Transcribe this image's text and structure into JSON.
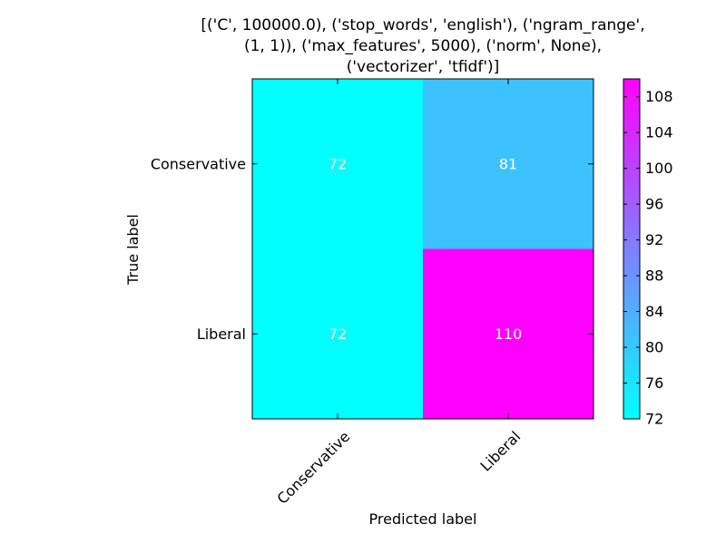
{
  "chart_data": {
    "type": "heatmap",
    "title_lines": [
      "[('C', 100000.0), ('stop_words', 'english'), ('ngram_range',",
      "(1, 1)), ('max_features', 5000), ('norm', None),",
      "('vectorizer', 'tfidf')]"
    ],
    "xlabel": "Predicted label",
    "ylabel": "True label",
    "x_categories": [
      "Conservative",
      "Liberal"
    ],
    "y_categories": [
      "Conservative",
      "Liberal"
    ],
    "values": [
      [
        72,
        81
      ],
      [
        72,
        110
      ]
    ],
    "colormap": {
      "low": "#00ffff",
      "high": "#ff00ff"
    },
    "colorbar": {
      "range": [
        72,
        110
      ],
      "ticks": [
        72,
        76,
        80,
        84,
        88,
        92,
        96,
        100,
        104,
        108
      ]
    },
    "cell_text_color": "#ffffff"
  }
}
